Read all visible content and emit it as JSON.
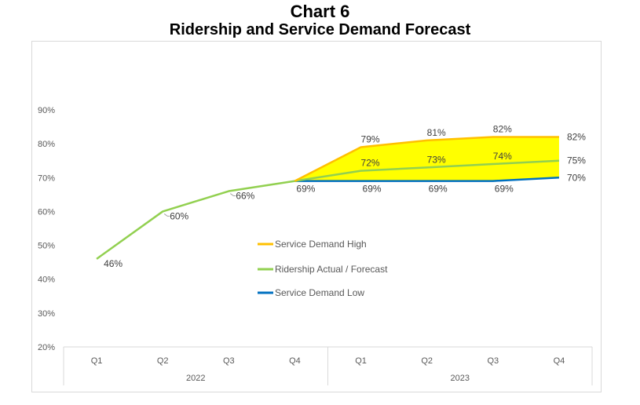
{
  "title": {
    "line1": "Chart 6",
    "line2": "Ridership and Service Demand Forecast"
  },
  "chart_data": {
    "type": "line",
    "title": "Ridership and Service Demand Forecast",
    "categories": [
      "Q1",
      "Q2",
      "Q3",
      "Q4",
      "Q1",
      "Q2",
      "Q3",
      "Q4"
    ],
    "year_groups": [
      {
        "label": "2022",
        "span": 4
      },
      {
        "label": "2023",
        "span": 4
      }
    ],
    "y_axis": {
      "min": 20,
      "max": 90,
      "step": 10,
      "tick_labels": [
        "90%",
        "80%",
        "70%",
        "60%",
        "50%",
        "40%",
        "30%",
        "20%"
      ]
    },
    "grid": "off",
    "legend_position": "center",
    "series": [
      {
        "name": "Service Demand High",
        "color": "#FFC000",
        "values": [
          null,
          null,
          null,
          69,
          79,
          81,
          82,
          82
        ],
        "labels": [
          null,
          null,
          null,
          null,
          "79%",
          "81%",
          "82%",
          "82%"
        ],
        "label_pos": [
          null,
          null,
          null,
          null,
          "above",
          "above",
          "above",
          "right"
        ]
      },
      {
        "name": "Ridership Actual / Forecast",
        "color": "#92D050",
        "values": [
          46,
          60,
          66,
          69,
          72,
          73,
          74,
          75
        ],
        "labels": [
          "46%",
          "60%",
          "66%",
          "69%",
          "72%",
          "73%",
          "74%",
          "75%"
        ],
        "label_pos": [
          "right-low",
          "right-low-leader",
          "right-low-leader",
          "below",
          "above",
          "above",
          "above",
          "right"
        ]
      },
      {
        "name": "Service Demand Low",
        "color": "#0070C0",
        "values": [
          null,
          null,
          null,
          69,
          69,
          69,
          69,
          70
        ],
        "labels": [
          null,
          null,
          null,
          null,
          "69%",
          "69%",
          "69%",
          "70%"
        ],
        "label_pos": [
          null,
          null,
          null,
          null,
          "below",
          "below",
          "below",
          "right"
        ]
      }
    ],
    "band": {
      "top_series": "Service Demand High",
      "bottom_series": "Service Demand Low",
      "color": "#FFFF00"
    },
    "legend": [
      {
        "label": "Service Demand High",
        "color": "#FFC000"
      },
      {
        "label": "Ridership Actual / Forecast",
        "color": "#92D050"
      },
      {
        "label": "Service Demand Low",
        "color": "#0070C0"
      }
    ]
  }
}
